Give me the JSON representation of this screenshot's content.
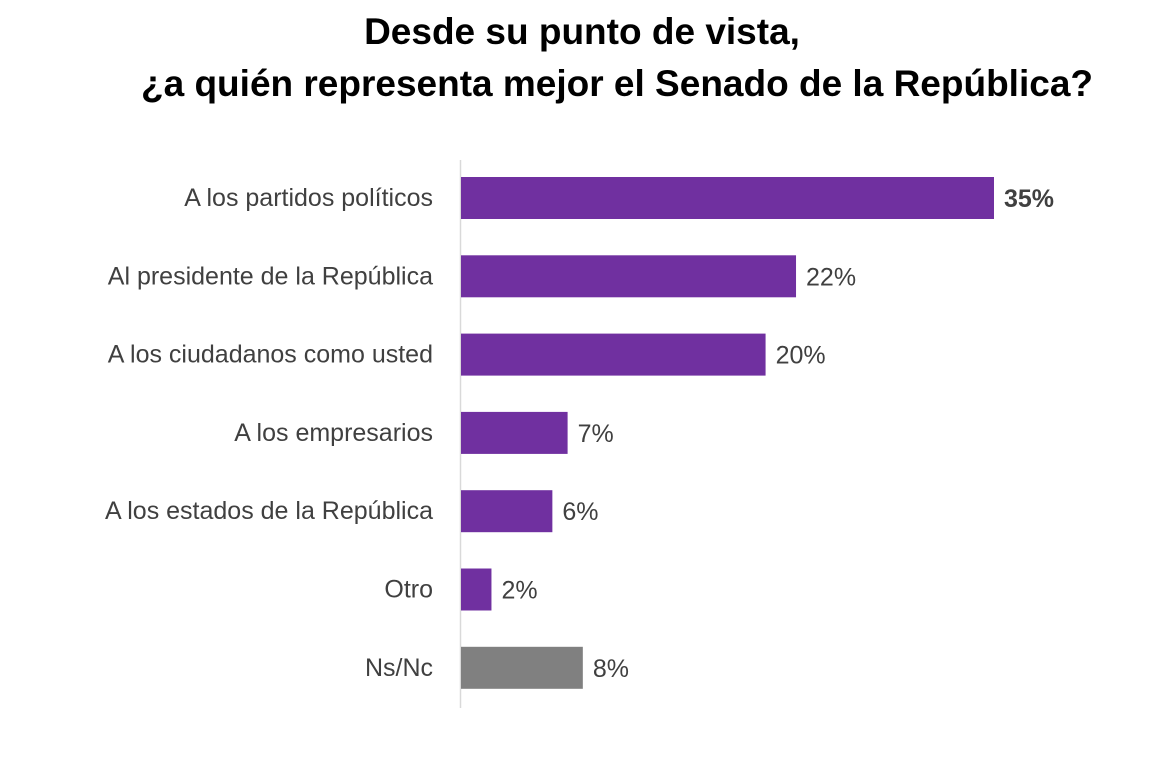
{
  "chart_data": {
    "type": "bar",
    "orientation": "horizontal",
    "title_lines": [
      "Desde su punto de vista,",
      "¿a quién representa mejor el Senado de la República?"
    ],
    "categories": [
      "A los partidos políticos",
      "Al presidente de la República",
      "A los ciudadanos como usted",
      "A los empresarios",
      "A los estados de la República",
      "Otro",
      "Ns/Nc"
    ],
    "values": [
      35,
      22,
      20,
      7,
      6,
      2,
      8
    ],
    "value_labels": [
      "35%",
      "22%",
      "20%",
      "7%",
      "6%",
      "2%",
      "8%"
    ],
    "bar_colors": [
      "#7030A0",
      "#7030A0",
      "#7030A0",
      "#7030A0",
      "#7030A0",
      "#7030A0",
      "#808080"
    ],
    "bold_value_index": 0,
    "xlim": [
      0,
      35
    ],
    "grid": false,
    "legend": "none"
  }
}
